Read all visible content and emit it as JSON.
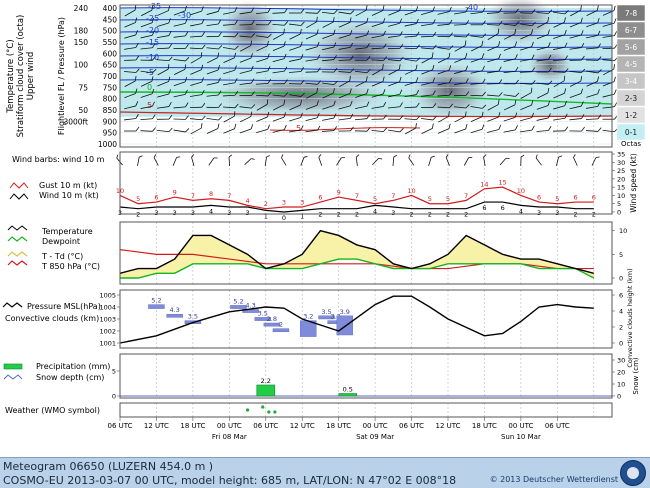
{
  "time": {
    "tick_labels": [
      "06 UTC",
      "12 UTC",
      "18 UTC",
      "00 UTC",
      "06 UTC",
      "12 UTC",
      "18 UTC",
      "00 UTC",
      "06 UTC",
      "12 UTC",
      "18 UTC",
      "00 UTC",
      "06 UTC"
    ],
    "day_labels": [
      "Fri 08 Mar",
      "Sat 09 Mar",
      "Sun 10 Mar"
    ]
  },
  "footer": {
    "line1": "Meteogram 06650 (LUZERN  454.0 m )",
    "line2": "COSMO-EU 2013-03-07  00 UTC, model height: 685 m,  LAT/LON: N 47°02 E 008°18",
    "copyright": "© 2013 Deutscher Wetterdienst"
  },
  "chart_data": [
    {
      "type": "heatmap",
      "y_title_lines": [
        "Temperature (°C)",
        "Stratiform cloud cover (octa)",
        "Upper wind"
      ],
      "y_title2": "Flightlevel FL / Pressure (hPa)",
      "pressure_levels": [
        400,
        450,
        500,
        550,
        600,
        650,
        700,
        750,
        800,
        850,
        900,
        950,
        1000
      ],
      "flight_levels": [
        "240",
        "180",
        "150",
        "100",
        "75",
        "50",
        "3000ft"
      ],
      "flight_level_pressures": [
        400,
        500,
        550,
        650,
        750,
        850,
        900
      ],
      "isotherm_labels": [
        "-35",
        "-30",
        "-25",
        "-20",
        "-15",
        "-10",
        "-5",
        "0",
        "5",
        "-40",
        "5"
      ],
      "cloud_legend": {
        "title": "Octas",
        "classes": [
          "7-8",
          "6-7",
          "5-6",
          "4-5",
          "3-4",
          "2-3",
          "1-2",
          "0-1"
        ]
      }
    },
    {
      "type": "line",
      "legend": [
        "Wind barbs: wind 10 m",
        "Gust 10 m (kt)",
        "Wind 10 m (kt)"
      ],
      "ylabel": "Wind speed (kt)",
      "y_ticks": [
        0,
        5,
        10,
        15,
        20,
        25,
        30,
        35
      ],
      "series": [
        {
          "name": "Gust 10 m (kt)",
          "x": [
            0,
            3,
            6,
            9,
            12,
            15,
            18,
            21,
            24,
            27,
            30,
            33,
            36,
            39,
            42,
            45,
            48,
            51,
            54,
            57,
            60,
            63,
            66,
            69,
            72,
            75,
            78
          ],
          "values": [
            10,
            5,
            6,
            9,
            7,
            8,
            7,
            4,
            2,
            3,
            3,
            6,
            9,
            7,
            5,
            7,
            10,
            5,
            5,
            7,
            14,
            15,
            10,
            6,
            5,
            6,
            6
          ]
        },
        {
          "name": "Wind 10 m (kt)",
          "x": [
            0,
            3,
            6,
            9,
            12,
            15,
            18,
            21,
            24,
            27,
            30,
            33,
            36,
            39,
            42,
            45,
            48,
            51,
            54,
            57,
            60,
            63,
            66,
            69,
            72,
            75,
            78
          ],
          "values": [
            3,
            2,
            3,
            3,
            3,
            4,
            3,
            3,
            1,
            0,
            1,
            2,
            2,
            2,
            4,
            3,
            2,
            2,
            2,
            2,
            6,
            6,
            4,
            3,
            3,
            2,
            2
          ]
        }
      ]
    },
    {
      "type": "line",
      "legend": [
        "Temperature",
        "Dewpoint",
        "T - Td (°C)",
        "T 850 hPa (°C)"
      ],
      "y_ticks": [
        0,
        5,
        10
      ],
      "series": [
        {
          "name": "Temperature",
          "x": [
            0,
            3,
            6,
            9,
            12,
            15,
            18,
            21,
            24,
            27,
            30,
            33,
            36,
            39,
            42,
            45,
            48,
            51,
            54,
            57,
            60,
            63,
            66,
            69,
            72,
            75,
            78
          ],
          "values": [
            1,
            2,
            2,
            4,
            9,
            9,
            7,
            5,
            2,
            3,
            5,
            10,
            9,
            7,
            6,
            3,
            2,
            3,
            5,
            9,
            7,
            5,
            4,
            4,
            3,
            2,
            1
          ]
        },
        {
          "name": "Dewpoint",
          "x": [
            0,
            3,
            6,
            9,
            12,
            15,
            18,
            21,
            24,
            27,
            30,
            33,
            36,
            39,
            42,
            45,
            48,
            51,
            54,
            57,
            60,
            63,
            66,
            69,
            72,
            75,
            78
          ],
          "values": [
            0,
            0,
            1,
            1,
            3,
            3,
            3,
            3,
            2,
            2,
            2,
            3,
            4,
            4,
            3,
            2,
            2,
            2,
            3,
            3,
            3,
            3,
            3,
            2,
            2,
            2,
            0
          ]
        },
        {
          "name": "T 850 hPa (°C)",
          "x": [
            0,
            6,
            12,
            18,
            24,
            30,
            36,
            42,
            48,
            54,
            60,
            66,
            72,
            78
          ],
          "values": [
            6,
            5,
            5,
            4,
            3,
            3,
            3,
            3,
            2,
            2,
            3,
            3,
            2,
            2
          ]
        }
      ]
    },
    {
      "type": "line",
      "legend": [
        "Pressure MSL(hPa)",
        "Convective clouds (km)"
      ],
      "y_ticks": [
        1001,
        1002,
        1003,
        1004,
        1005
      ],
      "y2_ticks": [
        0,
        2,
        4,
        6
      ],
      "ylabel2": "Convective clouds height (km)",
      "series": [
        {
          "name": "Pressure MSL(hPa)",
          "x": [
            0,
            6,
            12,
            18,
            21,
            24,
            27,
            30,
            36,
            42,
            45,
            48,
            51,
            54,
            57,
            60,
            63,
            66,
            69,
            72,
            75,
            78
          ],
          "values": [
            1001.0,
            1001.6,
            1002.7,
            1003.6,
            1003.8,
            1004.0,
            1003.9,
            1003.0,
            1002.0,
            1004.2,
            1004.9,
            1004.9,
            1004.0,
            1003.0,
            1002.3,
            1001.6,
            1001.8,
            1002.8,
            1004.0,
            1004.2,
            1004.0,
            1003.9
          ]
        }
      ],
      "convective_clouds": [
        {
          "x": 6,
          "top": 4.8,
          "base": 4.3,
          "label": "5.2"
        },
        {
          "x": 9,
          "top": 3.6,
          "base": 3.2,
          "label": "4.3"
        },
        {
          "x": 12,
          "top": 2.8,
          "base": 2.4,
          "label": "3.5"
        },
        {
          "x": 19.5,
          "top": 4.7,
          "base": 4.3,
          "label": "5.2"
        },
        {
          "x": 21.5,
          "top": 4.2,
          "base": 3.8,
          "label": "4.3"
        },
        {
          "x": 23.5,
          "top": 3.2,
          "base": 2.8,
          "label": "3.5"
        },
        {
          "x": 25,
          "top": 2.5,
          "base": 2.1,
          "label": "2.8"
        },
        {
          "x": 26.5,
          "top": 1.8,
          "base": 1.4,
          "label": "2"
        },
        {
          "x": 31,
          "top": 2.8,
          "base": 0.8,
          "label": "3.2"
        },
        {
          "x": 34,
          "top": 3.4,
          "base": 3.0,
          "label": "3.5"
        },
        {
          "x": 35.5,
          "top": 2.8,
          "base": 2.4,
          "label": "3.2"
        },
        {
          "x": 37,
          "top": 3.4,
          "base": 1.0,
          "label": "3.9"
        }
      ]
    },
    {
      "type": "bar",
      "legend": [
        "Precipitation (mm)",
        "Snow depth (cm)"
      ],
      "y_ticks": [
        0,
        5
      ],
      "ylabel2": "Snow (cm)",
      "y2_ticks": [
        0,
        10,
        20,
        30
      ],
      "bars": [
        {
          "x": 24,
          "value": 2.2,
          "label": "2.2"
        },
        {
          "x": 37.5,
          "value": 0.5,
          "label": "0.5"
        }
      ]
    },
    {
      "type": "scatter",
      "legend": [
        "Weather (WMO symbol)"
      ]
    }
  ]
}
